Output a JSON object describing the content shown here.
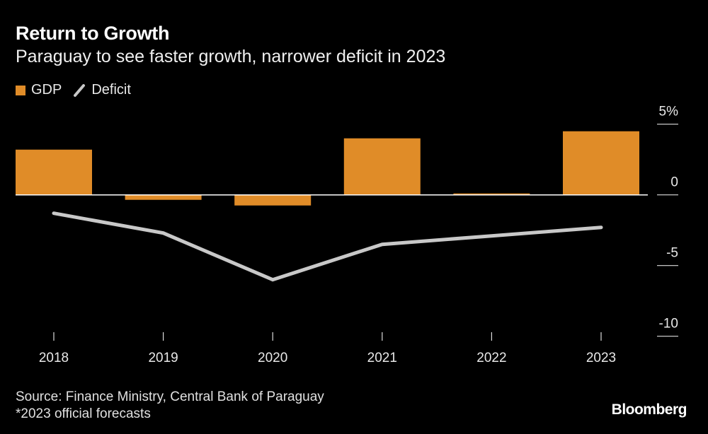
{
  "title": "Return to Growth",
  "subtitle": "Paraguay to see faster growth, narrower deficit in 2023",
  "source": "Source: Finance Ministry, Central Bank of Paraguay",
  "note": "*2023 official forecasts",
  "logo": "Bloomberg",
  "colors": {
    "gdp": "#e08c28",
    "deficit": "#c8c8c8",
    "background": "#000000"
  },
  "chart_data": {
    "type": "bar+line",
    "categories": [
      "2018",
      "2019",
      "2020",
      "2021",
      "2022",
      "2023"
    ],
    "series": [
      {
        "name": "GDP",
        "type": "bar",
        "values": [
          3.2,
          -0.35,
          -0.75,
          4.0,
          0.1,
          4.5
        ]
      },
      {
        "name": "Deficit",
        "type": "line",
        "values": [
          -1.3,
          -2.7,
          -6.0,
          -3.5,
          -2.9,
          -2.3
        ]
      }
    ],
    "yticks": [
      {
        "value": 5,
        "label": "5%"
      },
      {
        "value": 0,
        "label": "0"
      },
      {
        "value": -5,
        "label": "-5"
      },
      {
        "value": -10,
        "label": "-10"
      }
    ],
    "ylim": [
      -10,
      5
    ],
    "yaxis_position": "right",
    "legend_position": "top-left",
    "grid": false
  }
}
